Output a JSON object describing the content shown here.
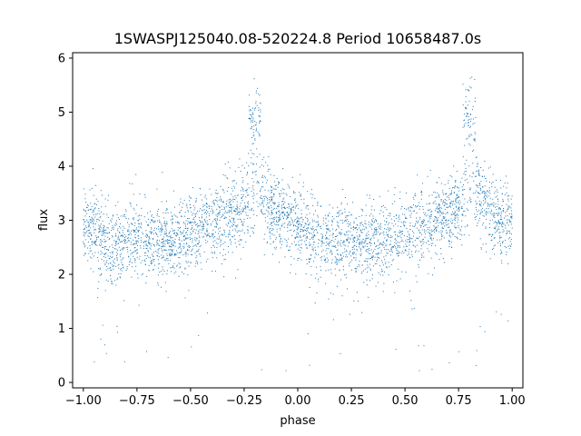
{
  "chart_data": {
    "type": "scatter",
    "title": "1SWASPJ125040.08-520224.8 Period 10658487.0s",
    "xlabel": "phase",
    "ylabel": "flux",
    "xlim": [
      -1.05,
      1.05
    ],
    "ylim": [
      -0.1,
      6.1
    ],
    "x_ticks": [
      -1.0,
      -0.75,
      -0.5,
      -0.25,
      0.0,
      0.25,
      0.5,
      0.75,
      1.0
    ],
    "x_tick_labels": [
      "−1.00",
      "−0.75",
      "−0.50",
      "−0.25",
      "0.00",
      "0.25",
      "0.50",
      "0.75",
      "1.00"
    ],
    "y_ticks": [
      0,
      1,
      2,
      3,
      4,
      5,
      6
    ],
    "y_tick_labels": [
      "0",
      "1",
      "2",
      "3",
      "4",
      "5",
      "6"
    ],
    "grid": false,
    "legend": "none",
    "marker_color": "#1f77b4",
    "series": [
      {
        "phase_profile": [
          {
            "phase": -1.0,
            "flux": 3.0
          },
          {
            "phase": -0.95,
            "flux": 2.8
          },
          {
            "phase": -0.9,
            "flux": 2.6
          },
          {
            "phase": -0.85,
            "flux": 2.55
          },
          {
            "phase": -0.8,
            "flux": 2.6
          },
          {
            "phase": -0.75,
            "flux": 2.7
          },
          {
            "phase": -0.7,
            "flux": 2.6
          },
          {
            "phase": -0.65,
            "flux": 2.65
          },
          {
            "phase": -0.6,
            "flux": 2.6
          },
          {
            "phase": -0.55,
            "flux": 2.7
          },
          {
            "phase": -0.5,
            "flux": 2.75
          },
          {
            "phase": -0.45,
            "flux": 2.8
          },
          {
            "phase": -0.4,
            "flux": 2.9
          },
          {
            "phase": -0.35,
            "flux": 3.05
          },
          {
            "phase": -0.3,
            "flux": 3.1
          },
          {
            "phase": -0.25,
            "flux": 3.2
          },
          {
            "phase": -0.2,
            "flux": 3.5
          },
          {
            "phase": -0.15,
            "flux": 3.4
          },
          {
            "phase": -0.1,
            "flux": 3.1
          },
          {
            "phase": -0.05,
            "flux": 3.0
          },
          {
            "phase": 0.0,
            "flux": 3.0
          },
          {
            "phase": 0.05,
            "flux": 2.8
          },
          {
            "phase": 0.1,
            "flux": 2.6
          },
          {
            "phase": 0.15,
            "flux": 2.55
          },
          {
            "phase": 0.2,
            "flux": 2.6
          },
          {
            "phase": 0.25,
            "flux": 2.7
          },
          {
            "phase": 0.3,
            "flux": 2.6
          },
          {
            "phase": 0.35,
            "flux": 2.65
          },
          {
            "phase": 0.4,
            "flux": 2.6
          },
          {
            "phase": 0.45,
            "flux": 2.7
          },
          {
            "phase": 0.5,
            "flux": 2.75
          },
          {
            "phase": 0.55,
            "flux": 2.8
          },
          {
            "phase": 0.6,
            "flux": 2.9
          },
          {
            "phase": 0.65,
            "flux": 3.05
          },
          {
            "phase": 0.7,
            "flux": 3.1
          },
          {
            "phase": 0.75,
            "flux": 3.2
          },
          {
            "phase": 0.8,
            "flux": 3.5
          },
          {
            "phase": 0.85,
            "flux": 3.4
          },
          {
            "phase": 0.9,
            "flux": 3.1
          },
          {
            "phase": 0.95,
            "flux": 3.0
          },
          {
            "phase": 1.0,
            "flux": 3.0
          }
        ],
        "high_state_segments": [
          {
            "phase_start": -0.23,
            "phase_end": -0.17,
            "flux": 4.8
          },
          {
            "phase_start": 0.77,
            "phase_end": 0.83,
            "flux": 4.8
          }
        ],
        "flux_scatter": 0.35,
        "approx_point_count": 4000
      }
    ]
  }
}
